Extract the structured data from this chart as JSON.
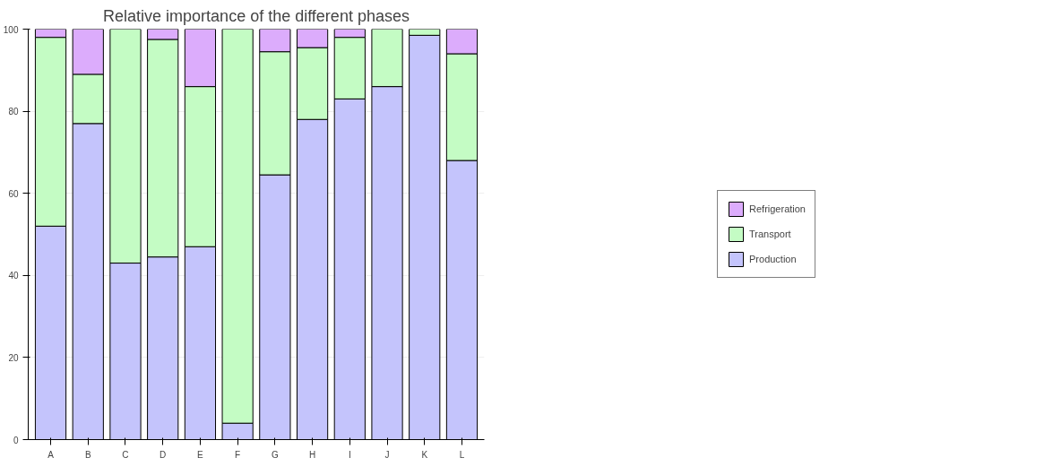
{
  "chart_data": {
    "type": "bar",
    "title": "Relative importance of the different phases",
    "categories": [
      "A",
      "B",
      "C",
      "D",
      "E",
      "F",
      "G",
      "H",
      "I",
      "J",
      "K",
      "L"
    ],
    "stacked": true,
    "series": [
      {
        "name": "Production",
        "color": "#c4c4fc",
        "values": [
          52,
          77,
          43,
          44.5,
          47,
          4,
          64.5,
          78,
          83,
          86,
          98.5,
          68
        ]
      },
      {
        "name": "Transport",
        "color": "#c4fcc4",
        "values": [
          46,
          12,
          57,
          53,
          39,
          96,
          30,
          17.5,
          15,
          14,
          1.5,
          26
        ]
      },
      {
        "name": "Refrigeration",
        "color": "#dcacfc",
        "values": [
          2,
          11,
          null,
          2.5,
          14,
          null,
          5.5,
          4.5,
          2,
          null,
          null,
          6
        ]
      }
    ],
    "ylim": [
      0,
      100
    ],
    "yticks": [
      0,
      20,
      40,
      60,
      80,
      100
    ],
    "grid": "y",
    "legend": "right"
  }
}
